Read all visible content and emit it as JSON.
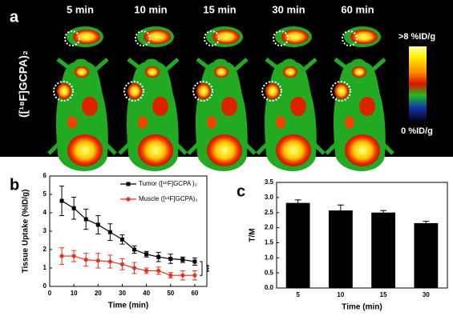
{
  "panel_a": {
    "label": "a",
    "times": [
      "5 min",
      "10 min",
      "15 min",
      "30 min",
      "60 min"
    ],
    "side_label": "([¹⁸F]GCPA)₂",
    "scale_max": ">8 %ID/g",
    "scale_min": "0 %ID/g"
  },
  "chart_data": [
    {
      "type": "line",
      "panel": "b",
      "xlabel": "Time (min)",
      "ylabel": "Tissue Uptake (%ID/g)",
      "x": [
        5,
        10,
        15,
        20,
        25,
        30,
        35,
        40,
        45,
        50,
        55,
        60
      ],
      "xlim": [
        0,
        65
      ],
      "xticks": [
        0,
        10,
        20,
        30,
        40,
        50,
        60
      ],
      "ylim": [
        0,
        6
      ],
      "yticks": [
        0,
        1,
        2,
        3,
        4,
        5,
        6
      ],
      "annotation": "***",
      "legend": "upper right",
      "series": [
        {
          "name": "Tumor ([¹⁸F]GCPA )₂",
          "color": "#000000",
          "marker": "square",
          "values": [
            4.65,
            4.25,
            3.65,
            3.35,
            2.95,
            2.55,
            2.0,
            1.75,
            1.6,
            1.5,
            1.45,
            1.35
          ],
          "errors": [
            0.8,
            0.6,
            0.55,
            0.5,
            0.45,
            0.25,
            0.2,
            0.15,
            0.25,
            0.25,
            0.15,
            0.2
          ]
        },
        {
          "name": "Muscle ([¹⁸F]GCPA)₂",
          "color": "#e8301c",
          "marker": "circle",
          "values": [
            1.65,
            1.65,
            1.45,
            1.4,
            1.35,
            1.2,
            1.0,
            0.85,
            0.85,
            0.6,
            0.6,
            0.6
          ],
          "errors": [
            0.45,
            0.3,
            0.35,
            0.4,
            0.35,
            0.3,
            0.3,
            0.15,
            0.2,
            0.15,
            0.25,
            0.25
          ]
        }
      ]
    },
    {
      "type": "bar",
      "panel": "c",
      "xlabel": "Time (min)",
      "ylabel": "T/M",
      "categories": [
        "5",
        "10",
        "15",
        "30"
      ],
      "values": [
        2.82,
        2.57,
        2.5,
        2.15
      ],
      "errors": [
        0.1,
        0.18,
        0.07,
        0.06
      ],
      "color": "#000000",
      "ylim": [
        0,
        3.5
      ],
      "yticks": [
        {
          "value": 0,
          "label": "0.0"
        },
        0.5,
        {
          "value": 1,
          "label": "1.0"
        },
        1.5,
        {
          "value": 2,
          "label": "2.0"
        },
        2.5,
        {
          "value": 3,
          "label": "3.0"
        },
        3.5
      ]
    }
  ]
}
